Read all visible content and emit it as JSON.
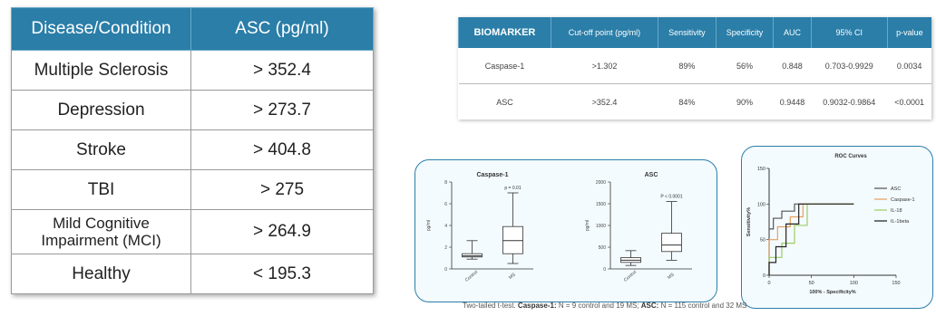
{
  "left_table": {
    "headers": [
      "Disease/Condition",
      "ASC (pg/ml)"
    ],
    "rows": [
      {
        "condition": "Multiple Sclerosis",
        "value": "> 352.4"
      },
      {
        "condition": "Depression",
        "value": "> 273.7"
      },
      {
        "condition": "Stroke",
        "value": "> 404.8"
      },
      {
        "condition": "TBI",
        "value": "> 275"
      },
      {
        "condition": "Mild Cognitive Impairment (MCI)",
        "value": "> 264.9"
      },
      {
        "condition": "Healthy",
        "value": "< 195.3"
      }
    ]
  },
  "right_table": {
    "headers": [
      "BIOMARKER",
      "Cut-off point (pg/ml)",
      "Sensitivity",
      "Specificity",
      "AUC",
      "95% CI",
      "p-value"
    ],
    "rows": [
      [
        "Caspase-1",
        ">1.302",
        "89%",
        "56%",
        "0.848",
        "0.703-0.9929",
        "0.0034"
      ],
      [
        "ASC",
        ">352.4",
        "84%",
        "90%",
        "0.9448",
        "0.9032-0.9864",
        "<0.0001"
      ]
    ]
  },
  "chart_data": [
    {
      "type": "box",
      "title": "Caspase-1",
      "ylabel": "pg/ml",
      "ylim": [
        0,
        8
      ],
      "yticks": [
        "0",
        "2",
        "4",
        "6",
        "8"
      ],
      "categories": [
        "Control",
        "MS"
      ],
      "boxes": [
        {
          "category": "Control",
          "min": 0.9,
          "q1": 1.1,
          "median": 1.2,
          "q3": 1.4,
          "max": 2.6
        },
        {
          "category": "MS",
          "min": 0.5,
          "q1": 1.4,
          "median": 2.6,
          "q3": 3.9,
          "max": 7.0
        }
      ],
      "annotation": "p = 0.01"
    },
    {
      "type": "box",
      "title": "ASC",
      "ylabel": "pg/ml",
      "ylim": [
        0,
        2000
      ],
      "yticks": [
        "0",
        "500",
        "1000",
        "1500",
        "2000"
      ],
      "categories": [
        "Control",
        "MS"
      ],
      "boxes": [
        {
          "category": "Control",
          "min": 80,
          "q1": 150,
          "median": 200,
          "q3": 260,
          "max": 420
        },
        {
          "category": "MS",
          "min": 200,
          "q1": 400,
          "median": 550,
          "q3": 820,
          "max": 1550
        }
      ],
      "annotation": "P < 0.0001"
    },
    {
      "type": "line",
      "title": "ROC Curves",
      "xlabel": "100% - Specificity%",
      "ylabel": "Sensitivity%",
      "xlim": [
        0,
        150
      ],
      "ylim": [
        0,
        150
      ],
      "xticks": [
        "0",
        "50",
        "100",
        "150"
      ],
      "yticks": [
        "0",
        "50",
        "100",
        "150"
      ],
      "series": [
        {
          "name": "ASC",
          "color": "#555555",
          "x": [
            0,
            0,
            5,
            5,
            15,
            15,
            30,
            30,
            50,
            100
          ],
          "y": [
            0,
            65,
            65,
            80,
            80,
            90,
            90,
            100,
            100,
            100
          ]
        },
        {
          "name": "Caspase-1",
          "color": "#e6a060",
          "x": [
            0,
            0,
            10,
            10,
            25,
            25,
            40,
            40,
            100
          ],
          "y": [
            0,
            50,
            50,
            68,
            68,
            82,
            82,
            100,
            100
          ]
        },
        {
          "name": "IL-18",
          "color": "#9ccc65",
          "x": [
            0,
            0,
            15,
            15,
            30,
            30,
            45,
            45,
            100
          ],
          "y": [
            0,
            25,
            25,
            45,
            45,
            70,
            70,
            100,
            100
          ]
        },
        {
          "name": "IL-1beta",
          "color": "#222222",
          "x": [
            0,
            0,
            8,
            8,
            20,
            20,
            35,
            35,
            100
          ],
          "y": [
            0,
            18,
            18,
            40,
            40,
            72,
            72,
            100,
            100
          ]
        }
      ]
    }
  ],
  "caption": {
    "prefix": "Two-tailed t-test. ",
    "casp_label": "Caspase-1:",
    "casp_text": " N = 9 control and 19 MS; ",
    "asc_label": "ASC:",
    "asc_text": " N = 115 control and 32 MS"
  }
}
